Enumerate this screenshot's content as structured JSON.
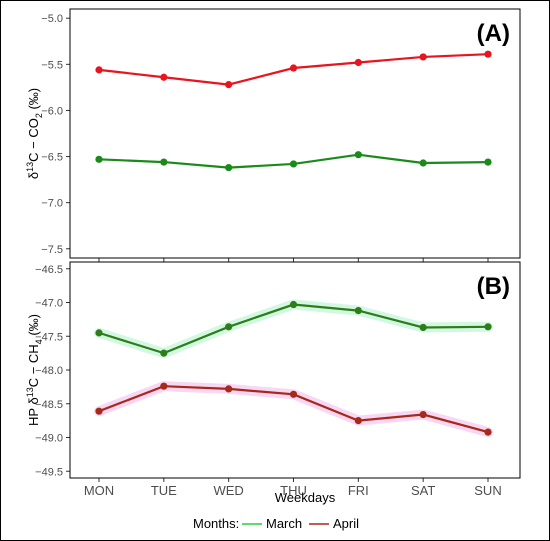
{
  "chart_data": [
    {
      "type": "line",
      "panel_label": "(A)",
      "categories": [
        "MON",
        "TUE",
        "WED",
        "THU",
        "FRI",
        "SAT",
        "SUN"
      ],
      "series": [
        {
          "name": "March",
          "color": "#1a8a1a",
          "values": [
            -6.53,
            -6.56,
            -6.62,
            -6.58,
            -6.48,
            -6.57,
            -6.56
          ]
        },
        {
          "name": "",
          "color": "#e8141e",
          "values": [
            -5.56,
            -5.64,
            -5.72,
            -5.54,
            -5.48,
            -5.42,
            -5.39
          ]
        }
      ],
      "ylim": [
        -7.6,
        -4.9
      ],
      "yticks": [
        -5.0,
        -5.5,
        -6.0,
        -6.5,
        -7.0,
        -7.5
      ],
      "ytick_labels": [
        "−5.0",
        "−5.5",
        "−6.0",
        "−6.5",
        "−7.0",
        "−7.5"
      ],
      "ylabel_pre": "δ",
      "ylabel_sup": "13",
      "ylabel_mid": "C − CO",
      "ylabel_sub": "2",
      "ylabel_post": " (‰)"
    },
    {
      "type": "line",
      "panel_label": "(B)",
      "categories": [
        "MON",
        "TUE",
        "WED",
        "THU",
        "FRI",
        "SAT",
        "SUN"
      ],
      "series": [
        {
          "name": "March",
          "color": "#2e7d1a",
          "band": "#bff5d5",
          "values": [
            -47.45,
            -47.75,
            -47.36,
            -47.03,
            -47.12,
            -47.37,
            -47.36
          ]
        },
        {
          "name": "April",
          "color": "#a52a1a",
          "band": "#f5c6f0",
          "values": [
            -48.61,
            -48.24,
            -48.28,
            -48.36,
            -48.75,
            -48.66,
            -48.92
          ]
        }
      ],
      "ylim": [
        -49.6,
        -46.4
      ],
      "yticks": [
        -46.5,
        -47.0,
        -47.5,
        -48.0,
        -48.5,
        -49.0,
        -49.5
      ],
      "ytick_labels": [
        "−46.5",
        "−47.0",
        "−47.5",
        "−48.0",
        "−48.5",
        "−49.0",
        "−49.5"
      ],
      "ylabel_pre": "HP δ",
      "ylabel_sup": "13",
      "ylabel_mid": "C − CH",
      "ylabel_sub": "4",
      "ylabel_post": " (‰)",
      "xlabel": "Weekdays"
    }
  ],
  "legend": {
    "title": "Months:",
    "items": [
      {
        "label": "March",
        "color": "#2ecc40"
      },
      {
        "label": "April",
        "color": "#a52a1a"
      }
    ]
  }
}
